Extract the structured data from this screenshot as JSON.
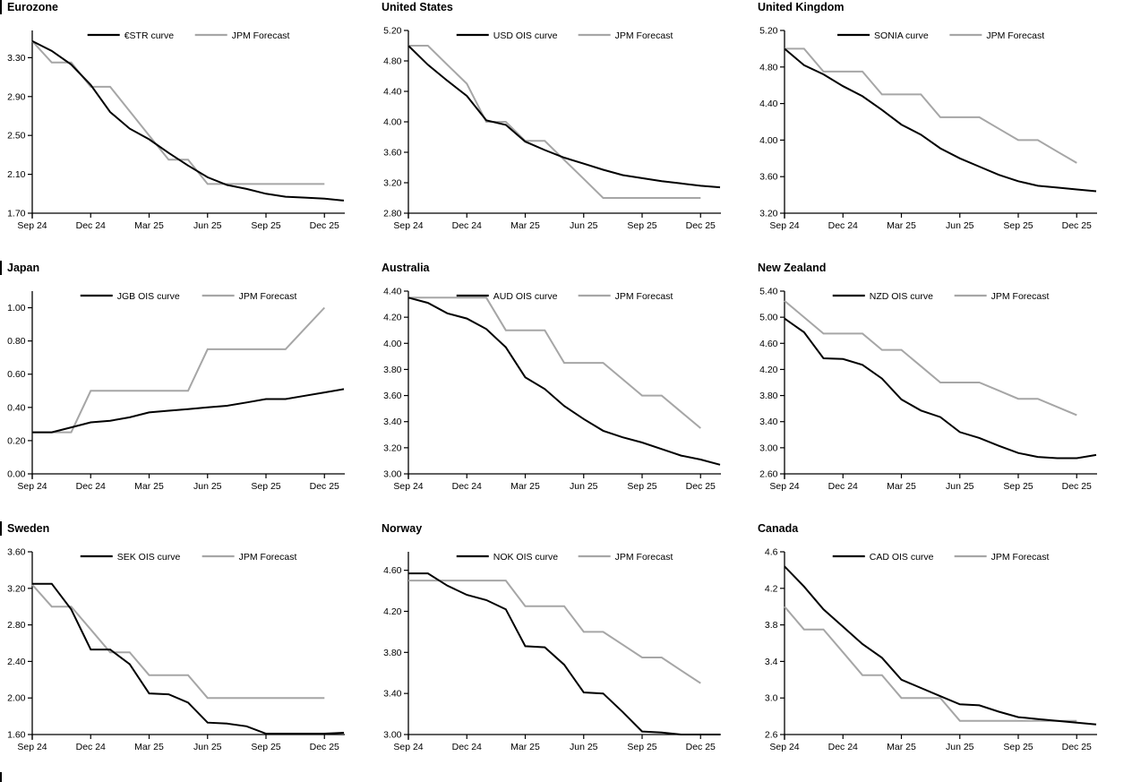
{
  "colors": {
    "main_line": "#000000",
    "forecast_line": "#a6a6a6",
    "axis": "#000000",
    "text": "#000000",
    "background": "#ffffff"
  },
  "chart_data": [
    {
      "type": "line",
      "title": "Eurozone",
      "x_unit": "months since Sep 2024 (monthly points)",
      "x_tick_labels": [
        "Sep 24",
        "Dec 24",
        "Mar 25",
        "Jun 25",
        "Sep 25",
        "Dec 25"
      ],
      "x_tick_months": [
        0,
        3,
        6,
        9,
        12,
        15
      ],
      "ylim": [
        1.7,
        3.58
      ],
      "y_tick_values": [
        1.7,
        2.1,
        2.5,
        2.9,
        3.3
      ],
      "y_tick_labels": [
        "1.70",
        "2.10",
        "2.50",
        "2.90",
        "3.30"
      ],
      "legend_position": "top-center",
      "grid": false,
      "series": [
        {
          "name": "€STR curve",
          "role": "main",
          "values": [
            3.47,
            3.37,
            3.23,
            3.02,
            2.74,
            2.57,
            2.46,
            2.32,
            2.19,
            2.07,
            1.99,
            1.95,
            1.9,
            1.87,
            1.86,
            1.85,
            1.83
          ]
        },
        {
          "name": "JPM Forecast",
          "role": "forecast",
          "values": [
            3.47,
            3.25,
            3.25,
            3.0,
            3.0,
            2.75,
            2.5,
            2.25,
            2.25,
            2.0,
            2.0,
            2.0,
            2.0,
            2.0,
            2.0,
            2.0
          ]
        }
      ]
    },
    {
      "type": "line",
      "title": "United States",
      "x_unit": "months since Sep 2024 (monthly points)",
      "x_tick_labels": [
        "Sep 24",
        "Dec 24",
        "Mar 25",
        "Jun 25",
        "Sep 25",
        "Dec 25"
      ],
      "x_tick_months": [
        0,
        3,
        6,
        9,
        12,
        15
      ],
      "ylim": [
        2.8,
        5.2
      ],
      "y_tick_values": [
        2.8,
        3.2,
        3.6,
        4.0,
        4.4,
        4.8,
        5.2
      ],
      "y_tick_labels": [
        "2.80",
        "3.20",
        "3.60",
        "4.00",
        "4.40",
        "4.80",
        "5.20"
      ],
      "legend_position": "top-center",
      "grid": false,
      "series": [
        {
          "name": "USD OIS curve",
          "role": "main",
          "values": [
            5.0,
            4.75,
            4.54,
            4.34,
            4.02,
            3.96,
            3.74,
            3.63,
            3.53,
            3.45,
            3.37,
            3.3,
            3.26,
            3.22,
            3.19,
            3.16,
            3.14
          ]
        },
        {
          "name": "JPM Forecast",
          "role": "forecast",
          "values": [
            5.0,
            5.0,
            4.75,
            4.5,
            4.0,
            4.0,
            3.75,
            3.75,
            3.5,
            3.25,
            3.0,
            3.0,
            3.0,
            3.0,
            3.0,
            3.0
          ]
        }
      ]
    },
    {
      "type": "line",
      "title": "United Kingdom",
      "x_unit": "months since Sep 2024 (monthly points)",
      "x_tick_labels": [
        "Sep 24",
        "Dec 24",
        "Mar 25",
        "Jun 25",
        "Sep 25",
        "Dec 25"
      ],
      "x_tick_months": [
        0,
        3,
        6,
        9,
        12,
        15
      ],
      "ylim": [
        3.2,
        5.2
      ],
      "y_tick_values": [
        3.2,
        3.6,
        4.0,
        4.4,
        4.8,
        5.2
      ],
      "y_tick_labels": [
        "3.20",
        "3.60",
        "4.00",
        "4.40",
        "4.80",
        "5.20"
      ],
      "legend_position": "top-center",
      "grid": false,
      "series": [
        {
          "name": "SONIA curve",
          "role": "main",
          "values": [
            5.0,
            4.82,
            4.72,
            4.59,
            4.48,
            4.33,
            4.17,
            4.06,
            3.91,
            3.8,
            3.71,
            3.62,
            3.55,
            3.5,
            3.48,
            3.46,
            3.44
          ]
        },
        {
          "name": "JPM Forecast",
          "role": "forecast",
          "values": [
            5.0,
            5.0,
            4.75,
            4.75,
            4.75,
            4.5,
            4.5,
            4.5,
            4.25,
            4.25,
            4.25,
            4.125,
            4.0,
            4.0,
            3.875,
            3.75
          ]
        }
      ]
    },
    {
      "type": "line",
      "title": "Japan",
      "x_unit": "months since Sep 2024 (monthly points)",
      "x_tick_labels": [
        "Sep 24",
        "Dec 24",
        "Mar 25",
        "Jun 25",
        "Sep 25",
        "Dec 25"
      ],
      "x_tick_months": [
        0,
        3,
        6,
        9,
        12,
        15
      ],
      "ylim": [
        0.0,
        1.1
      ],
      "y_tick_values": [
        0.0,
        0.2,
        0.4,
        0.6,
        0.8,
        1.0
      ],
      "y_tick_labels": [
        "0.00",
        "0.20",
        "0.40",
        "0.60",
        "0.80",
        "1.00"
      ],
      "legend_position": "top-center",
      "grid": false,
      "series": [
        {
          "name": "JGB OIS curve",
          "role": "main",
          "values": [
            0.25,
            0.25,
            0.28,
            0.31,
            0.32,
            0.34,
            0.37,
            0.38,
            0.39,
            0.4,
            0.41,
            0.43,
            0.45,
            0.45,
            0.47,
            0.49,
            0.51
          ]
        },
        {
          "name": "JPM Forecast",
          "role": "forecast",
          "values": [
            0.25,
            0.25,
            0.25,
            0.5,
            0.5,
            0.5,
            0.5,
            0.5,
            0.5,
            0.75,
            0.75,
            0.75,
            0.75,
            0.75,
            0.875,
            1.0
          ]
        }
      ]
    },
    {
      "type": "line",
      "title": "Australia",
      "x_unit": "months since Sep 2024 (monthly points)",
      "x_tick_labels": [
        "Sep 24",
        "Dec 24",
        "Mar 25",
        "Jun 25",
        "Sep 25",
        "Dec 25"
      ],
      "x_tick_months": [
        0,
        3,
        6,
        9,
        12,
        15
      ],
      "ylim": [
        3.0,
        4.4
      ],
      "y_tick_values": [
        3.0,
        3.2,
        3.4,
        3.6,
        3.8,
        4.0,
        4.2,
        4.4
      ],
      "y_tick_labels": [
        "3.00",
        "3.20",
        "3.40",
        "3.60",
        "3.80",
        "4.00",
        "4.20",
        "4.40"
      ],
      "legend_position": "top-center",
      "grid": false,
      "series": [
        {
          "name": "AUD OIS curve",
          "role": "main",
          "values": [
            4.35,
            4.31,
            4.23,
            4.19,
            4.11,
            3.97,
            3.74,
            3.65,
            3.52,
            3.42,
            3.33,
            3.28,
            3.24,
            3.19,
            3.14,
            3.11,
            3.07
          ]
        },
        {
          "name": "JPM Forecast",
          "role": "forecast",
          "values": [
            4.35,
            4.35,
            4.35,
            4.35,
            4.35,
            4.1,
            4.1,
            4.1,
            3.85,
            3.85,
            3.85,
            3.725,
            3.6,
            3.6,
            3.475,
            3.35
          ]
        }
      ]
    },
    {
      "type": "line",
      "title": "New Zealand",
      "x_unit": "months since Sep 2024 (monthly points)",
      "x_tick_labels": [
        "Sep 24",
        "Dec 24",
        "Mar 25",
        "Jun 25",
        "Sep 25",
        "Dec 25"
      ],
      "x_tick_months": [
        0,
        3,
        6,
        9,
        12,
        15
      ],
      "ylim": [
        2.6,
        5.4
      ],
      "y_tick_values": [
        2.6,
        3.0,
        3.4,
        3.8,
        4.2,
        4.6,
        5.0,
        5.4
      ],
      "y_tick_labels": [
        "2.60",
        "3.00",
        "3.40",
        "3.80",
        "4.20",
        "4.60",
        "5.00",
        "5.40"
      ],
      "legend_position": "top-center",
      "grid": false,
      "series": [
        {
          "name": "NZD OIS curve",
          "role": "main",
          "values": [
            4.98,
            4.77,
            4.37,
            4.36,
            4.27,
            4.06,
            3.74,
            3.57,
            3.47,
            3.24,
            3.15,
            3.03,
            2.92,
            2.86,
            2.84,
            2.84,
            2.89
          ]
        },
        {
          "name": "JPM Forecast",
          "role": "forecast",
          "values": [
            5.25,
            5.0,
            4.75,
            4.75,
            4.75,
            4.5,
            4.5,
            4.25,
            4.0,
            4.0,
            4.0,
            3.875,
            3.75,
            3.75,
            3.625,
            3.5
          ]
        }
      ]
    },
    {
      "type": "line",
      "title": "Sweden",
      "x_unit": "months since Sep 2024 (monthly points)",
      "x_tick_labels": [
        "Sep 24",
        "Dec 24",
        "Mar 25",
        "Jun 25",
        "Sep 25",
        "Dec 25"
      ],
      "x_tick_months": [
        0,
        3,
        6,
        9,
        12,
        15
      ],
      "ylim": [
        1.6,
        3.6
      ],
      "y_tick_values": [
        1.6,
        2.0,
        2.4,
        2.8,
        3.2,
        3.6
      ],
      "y_tick_labels": [
        "1.60",
        "2.00",
        "2.40",
        "2.80",
        "3.20",
        "3.60"
      ],
      "legend_position": "top-center",
      "grid": false,
      "series": [
        {
          "name": "SEK OIS curve",
          "role": "main",
          "values": [
            3.25,
            3.25,
            2.97,
            2.53,
            2.53,
            2.37,
            2.05,
            2.04,
            1.95,
            1.73,
            1.72,
            1.69,
            1.61,
            1.61,
            1.61,
            1.61,
            1.62
          ]
        },
        {
          "name": "JPM Forecast",
          "role": "forecast",
          "values": [
            3.24,
            3.0,
            3.0,
            2.75,
            2.5,
            2.5,
            2.25,
            2.25,
            2.25,
            2.0,
            2.0,
            2.0,
            2.0,
            2.0,
            2.0,
            2.0
          ]
        }
      ]
    },
    {
      "type": "line",
      "title": "Norway",
      "x_unit": "months since Sep 2024 (monthly points)",
      "x_tick_labels": [
        "Sep 24",
        "Dec 24",
        "Mar 25",
        "Jun 25",
        "Sep 25",
        "Dec 25"
      ],
      "x_tick_months": [
        0,
        3,
        6,
        9,
        12,
        15
      ],
      "ylim": [
        3.0,
        4.78
      ],
      "y_tick_values": [
        3.0,
        3.4,
        3.8,
        4.2,
        4.6
      ],
      "y_tick_labels": [
        "3.00",
        "3.40",
        "3.80",
        "4.20",
        "4.60"
      ],
      "legend_position": "top-center",
      "grid": false,
      "series": [
        {
          "name": "NOK OIS curve",
          "role": "main",
          "values": [
            4.57,
            4.57,
            4.45,
            4.36,
            4.31,
            4.22,
            3.86,
            3.85,
            3.68,
            3.41,
            3.4,
            3.22,
            3.03,
            3.02,
            3.0,
            3.0,
            2.99
          ]
        },
        {
          "name": "JPM Forecast",
          "role": "forecast",
          "values": [
            4.5,
            4.5,
            4.5,
            4.5,
            4.5,
            4.5,
            4.25,
            4.25,
            4.25,
            4.0,
            4.0,
            3.875,
            3.75,
            3.75,
            3.625,
            3.5
          ]
        }
      ]
    },
    {
      "type": "line",
      "title": "Canada",
      "x_unit": "months since Sep 2024 (monthly points)",
      "x_tick_labels": [
        "Sep 24",
        "Dec 24",
        "Mar 25",
        "Jun 25",
        "Sep 25",
        "Dec 25"
      ],
      "x_tick_months": [
        0,
        3,
        6,
        9,
        12,
        15
      ],
      "ylim": [
        2.6,
        4.6
      ],
      "y_tick_values": [
        2.6,
        3.0,
        3.4,
        3.8,
        4.2,
        4.6
      ],
      "y_tick_labels": [
        "2.6",
        "3.0",
        "3.4",
        "3.8",
        "4.2",
        "4.6"
      ],
      "legend_position": "top-center",
      "grid": false,
      "series": [
        {
          "name": "CAD OIS curve",
          "role": "main",
          "values": [
            4.44,
            4.22,
            3.97,
            3.78,
            3.59,
            3.44,
            3.2,
            3.11,
            3.02,
            2.93,
            2.92,
            2.85,
            2.79,
            2.77,
            2.75,
            2.73,
            2.71
          ]
        },
        {
          "name": "JPM Forecast",
          "role": "forecast",
          "values": [
            4.0,
            3.75,
            3.75,
            3.5,
            3.25,
            3.25,
            3.0,
            3.0,
            3.0,
            2.75,
            2.75,
            2.75,
            2.75,
            2.75,
            2.75,
            2.75
          ]
        }
      ]
    }
  ]
}
